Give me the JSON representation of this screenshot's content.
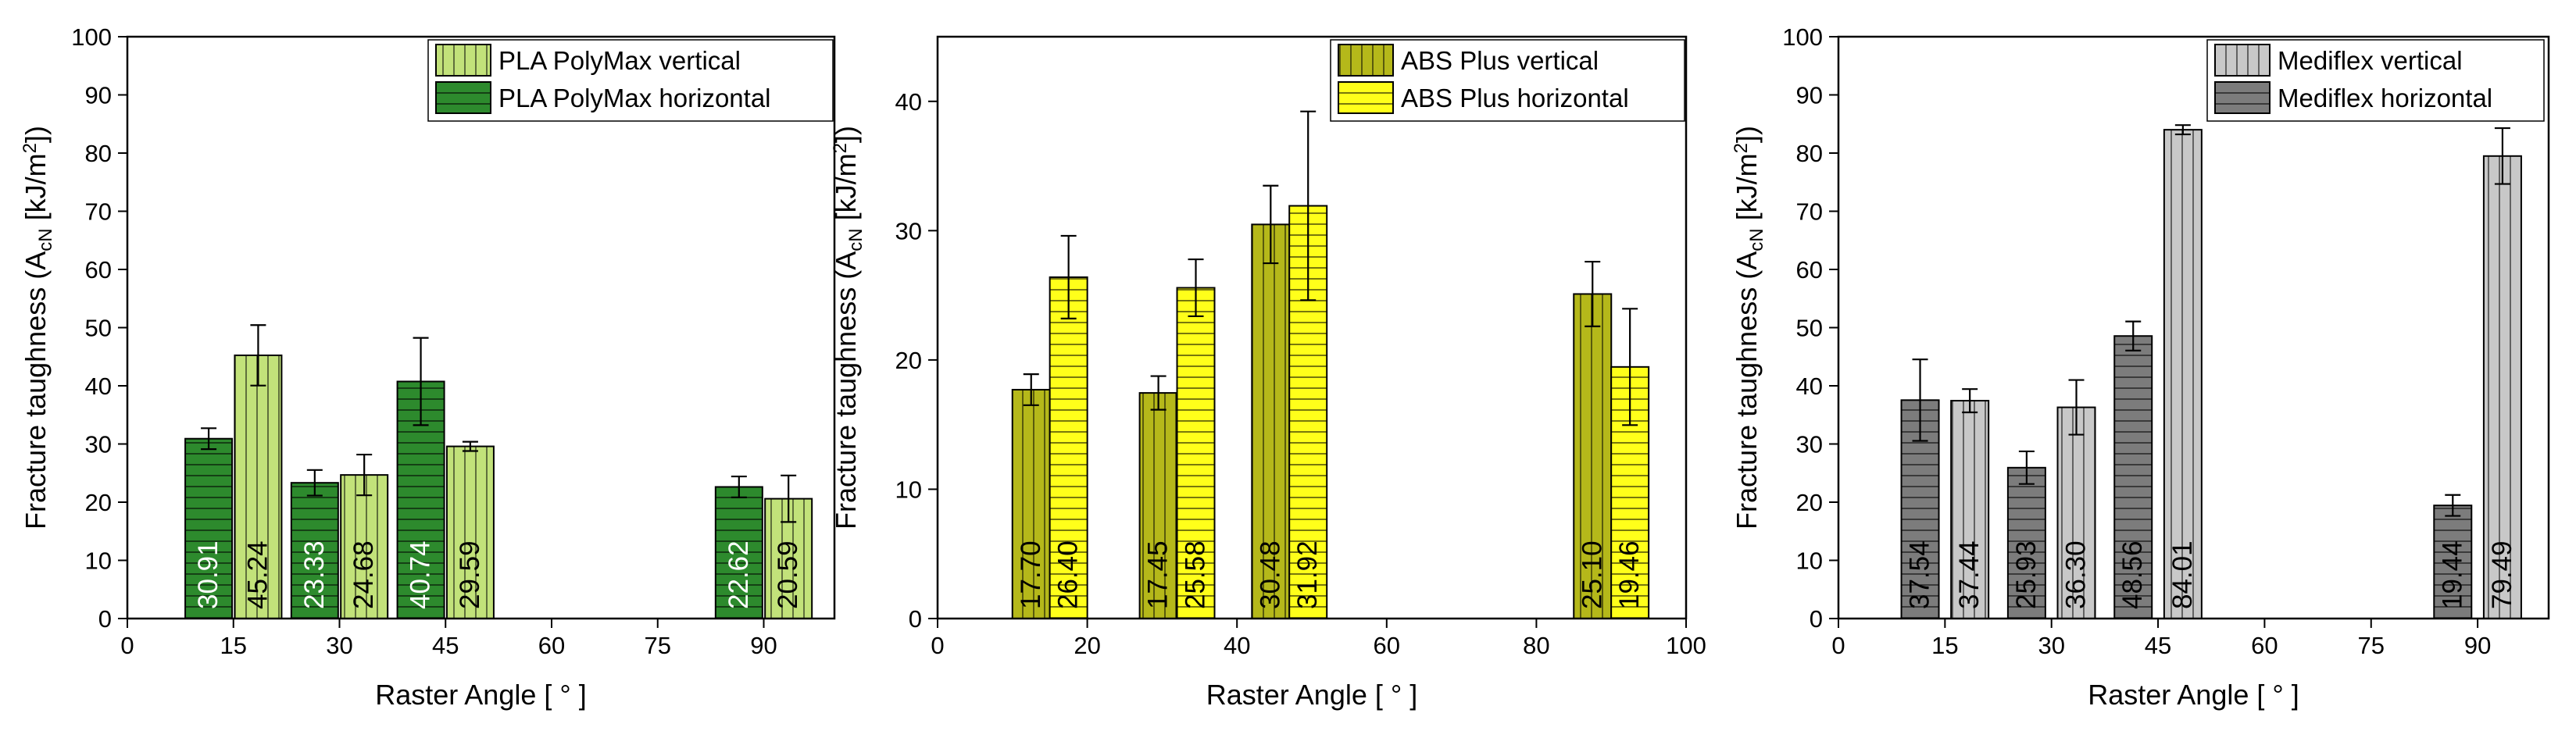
{
  "chart_data": [
    {
      "type": "bar",
      "orientation": "vertical",
      "xlabel": "Raster Angle [ ° ]",
      "ylabel_parts": [
        "Fracture taughness (A",
        "cN",
        " [kJ/m",
        "2",
        "])"
      ],
      "xlim": [
        0,
        100
      ],
      "ylim": [
        0,
        100
      ],
      "xticks": [
        0,
        15,
        30,
        45,
        60,
        75,
        90
      ],
      "yticks": [
        0,
        10,
        20,
        30,
        40,
        50,
        60,
        70,
        80,
        90,
        100
      ],
      "grid": false,
      "legend_position": "top-right",
      "series": [
        {
          "name": "PLA PolyMax horizontal",
          "color": "#2d8a2d",
          "pattern": "horizontal-lines",
          "label_color": "#ffffff",
          "x": [
            11.5,
            26.5,
            41.5,
            86.5
          ],
          "values": [
            30.91,
            23.33,
            40.74,
            22.62
          ],
          "errors": [
            1.8,
            2.2,
            7.5,
            1.8
          ],
          "labels": [
            "30.91",
            "23.33",
            "40.74",
            "22.62"
          ]
        },
        {
          "name": "PLA PolyMax vertical",
          "color": "#c2e27a",
          "pattern": "vertical-lines",
          "label_color": "#000000",
          "x": [
            18.5,
            33.5,
            48.5,
            93.5
          ],
          "values": [
            45.24,
            24.68,
            29.59,
            20.59
          ],
          "errors": [
            5.2,
            3.5,
            0.8,
            4.0
          ],
          "labels": [
            "45.24",
            "24.68",
            "29.59",
            "20.59"
          ]
        }
      ]
    },
    {
      "type": "bar",
      "orientation": "vertical",
      "xlabel": "Raster Angle [ ° ]",
      "ylabel_parts": [
        "Fracture taughness (A",
        "cN",
        " [kJ/m",
        "2",
        "])"
      ],
      "xlim": [
        0,
        100
      ],
      "ylim": [
        0,
        45
      ],
      "xticks": [
        0,
        20,
        40,
        60,
        80,
        100
      ],
      "yticks": [
        0,
        10,
        20,
        30,
        40
      ],
      "grid": false,
      "legend_position": "top-right",
      "series": [
        {
          "name": "ABS Plus vertical",
          "color": "#b5b81a",
          "pattern": "vertical-lines",
          "label_color": "#000000",
          "x": [
            12.5,
            29.5,
            44.5,
            87.5
          ],
          "values": [
            17.7,
            17.45,
            30.48,
            25.1
          ],
          "errors": [
            1.2,
            1.3,
            3.0,
            2.5
          ],
          "labels": [
            "17.70",
            "17.45",
            "30.48",
            "25.10"
          ]
        },
        {
          "name": "ABS Plus horizontal",
          "color": "#ffff1a",
          "pattern": "horizontal-lines",
          "label_color": "#000000",
          "x": [
            17.5,
            34.5,
            49.5,
            92.5
          ],
          "values": [
            26.4,
            25.58,
            31.92,
            19.46
          ],
          "errors": [
            3.2,
            2.2,
            7.3,
            4.5
          ],
          "labels": [
            "26.40",
            "25.58",
            "31.92",
            "19.46"
          ]
        }
      ]
    },
    {
      "type": "bar",
      "orientation": "vertical",
      "xlabel": "Raster Angle [ ° ]",
      "ylabel_parts": [
        "Fracture taughness (A",
        "cN",
        " [kJ/m",
        "2",
        "])"
      ],
      "xlim": [
        0,
        100
      ],
      "ylim": [
        0,
        100
      ],
      "xticks": [
        0,
        15,
        30,
        45,
        60,
        75,
        90
      ],
      "yticks": [
        0,
        10,
        20,
        30,
        40,
        50,
        60,
        70,
        80,
        90,
        100
      ],
      "grid": false,
      "legend_position": "top-right",
      "series": [
        {
          "name": "Mediflex horizontal",
          "color": "#7c7c7c",
          "pattern": "horizontal-lines",
          "label_color": "#000000",
          "x": [
            11.5,
            26.5,
            41.5,
            86.5
          ],
          "values": [
            37.54,
            25.93,
            48.56,
            19.44
          ],
          "errors": [
            7.0,
            2.8,
            2.5,
            1.8
          ],
          "labels": [
            "37.54",
            "25.93",
            "48.56",
            "19.44"
          ]
        },
        {
          "name": "Mediflex vertical",
          "color": "#c8c8c8",
          "pattern": "vertical-lines",
          "label_color": "#000000",
          "x": [
            18.5,
            33.5,
            48.5,
            93.5
          ],
          "values": [
            37.44,
            36.3,
            84.01,
            79.49
          ],
          "errors": [
            2.0,
            4.7,
            0.8,
            4.8
          ],
          "labels": [
            "37.44",
            "36.30",
            "84.01",
            "79.49"
          ]
        }
      ]
    }
  ]
}
